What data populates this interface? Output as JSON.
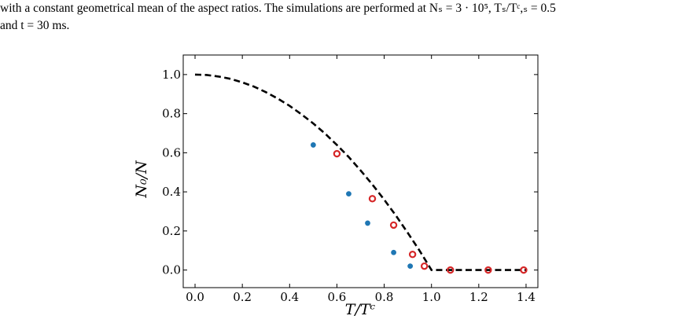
{
  "caption": {
    "line1": "with a constant geometrical mean of the aspect ratios. The simulations are performed at Nₛ = 3 · 10⁵, Tₛ/Tᶜ,ₛ = 0.5",
    "line2": "and t = 30 ms."
  },
  "chart_data": {
    "type": "scatter",
    "title": "",
    "xlabel": "T/Tᶜ",
    "ylabel": "N₀/N",
    "xlim": [
      -0.05,
      1.45
    ],
    "ylim": [
      -0.09,
      1.1
    ],
    "xticks": [
      "0.0",
      "0.2",
      "0.4",
      "0.6",
      "0.8",
      "1.0",
      "1.2",
      "1.4"
    ],
    "yticks": [
      "0.0",
      "0.2",
      "0.4",
      "0.6",
      "0.8",
      "1.0"
    ],
    "grid": false,
    "colors": {
      "filled": "#1f77b4",
      "open": "#d62728",
      "curve": "#000000"
    },
    "series": [
      {
        "style": "filled-dots",
        "x": [
          0.5,
          0.65,
          0.73,
          0.84,
          0.91
        ],
        "y": [
          0.64,
          0.39,
          0.24,
          0.09,
          0.02
        ]
      },
      {
        "style": "open-circles",
        "x": [
          0.6,
          0.75,
          0.84,
          0.92,
          0.97,
          1.08,
          1.24,
          1.39
        ],
        "y": [
          0.595,
          0.365,
          0.23,
          0.08,
          0.02,
          0.0,
          0.0,
          0.0
        ]
      },
      {
        "style": "dashed-line",
        "x": [
          0.0,
          0.05,
          0.1,
          0.15,
          0.2,
          0.25,
          0.3,
          0.35,
          0.4,
          0.45,
          0.5,
          0.55,
          0.6,
          0.65,
          0.7,
          0.75,
          0.8,
          0.85,
          0.9,
          0.95,
          0.97,
          1.0,
          1.1,
          1.2,
          1.3,
          1.4
        ],
        "y": [
          1.0,
          0.998,
          0.99,
          0.978,
          0.96,
          0.938,
          0.91,
          0.877,
          0.84,
          0.797,
          0.75,
          0.698,
          0.64,
          0.578,
          0.51,
          0.438,
          0.36,
          0.278,
          0.19,
          0.098,
          0.059,
          0.0,
          0.0,
          0.0,
          0.0,
          0.0
        ]
      }
    ]
  }
}
